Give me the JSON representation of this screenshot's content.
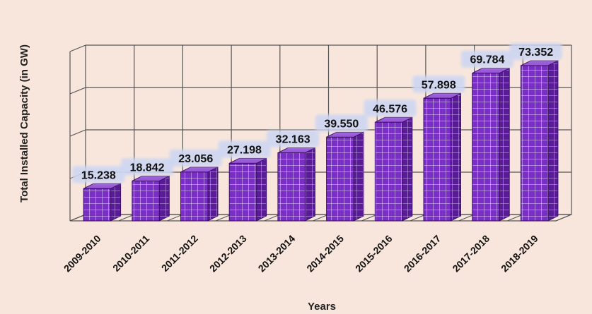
{
  "chart_data": {
    "type": "bar",
    "title": "",
    "xlabel": "Years",
    "ylabel": "Total Installed Capacity (in GW)",
    "categories": [
      "2009-2010",
      "2010-2011",
      "2011-2012",
      "2012-2013",
      "2013-2014",
      "2014-2015",
      "2015-2016",
      "2016-2017",
      "2017-2018",
      "2018-2019"
    ],
    "values": [
      15.238,
      18.842,
      23.056,
      27.198,
      32.163,
      39.55,
      46.576,
      57.898,
      69.784,
      73.352
    ],
    "value_labels": [
      "15.238",
      "18.842",
      "23.056",
      "27.198",
      "32.163",
      "39.550",
      "46.576",
      "57.898",
      "69.784",
      "73.352"
    ],
    "ylim": [
      0,
      80
    ],
    "grid": true,
    "legend": "none",
    "style": "3d-bar",
    "colors": {
      "background": "#f8e6dc",
      "bar_front": "#7a2fc4",
      "bar_side": "#5a1c96",
      "bar_top": "#9a5ad8",
      "bar_grid": "#e8d8ff",
      "gridline": "#555555",
      "label_box": "#cdd6f2"
    }
  }
}
